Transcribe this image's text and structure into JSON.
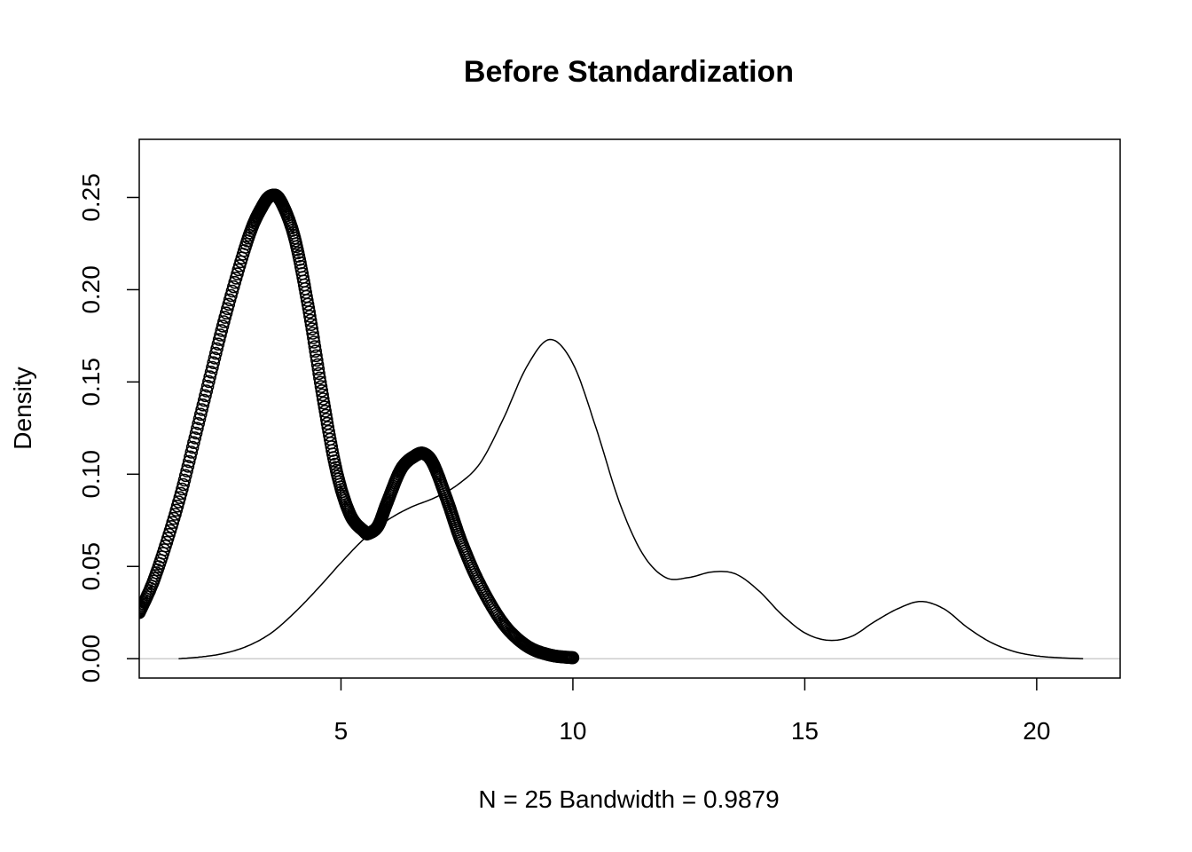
{
  "chart_data": {
    "type": "line",
    "title": "Before Standardization",
    "xlabel": "N = 25   Bandwidth = 0.9879",
    "ylabel": "Density",
    "xlim": [
      0.65,
      21.8
    ],
    "ylim": [
      -0.0105,
      0.2815
    ],
    "x_ticks": [
      5,
      10,
      15,
      20
    ],
    "x_tick_labels": [
      "5",
      "10",
      "15",
      "20"
    ],
    "y_ticks": [
      0.0,
      0.05,
      0.1,
      0.15,
      0.2,
      0.25
    ],
    "y_tick_labels": [
      "0.00",
      "0.05",
      "0.10",
      "0.15",
      "0.20",
      "0.25"
    ],
    "baseline": {
      "y": 0,
      "color": "#bebebe"
    },
    "series": [
      {
        "name": "density-line",
        "style": "line",
        "color": "#000000",
        "x": [
          1.5,
          2.0,
          2.5,
          3.0,
          3.5,
          4.0,
          4.5,
          5.0,
          5.5,
          6.0,
          6.5,
          7.0,
          7.5,
          8.0,
          8.5,
          9.0,
          9.5,
          10.0,
          10.5,
          11.0,
          11.5,
          12.0,
          12.5,
          13.0,
          13.5,
          14.0,
          14.5,
          15.0,
          15.5,
          16.0,
          16.5,
          17.0,
          17.5,
          18.0,
          18.5,
          19.0,
          19.5,
          20.0,
          20.5,
          21.0
        ],
        "y": [
          0.0,
          0.001,
          0.003,
          0.007,
          0.014,
          0.025,
          0.038,
          0.052,
          0.065,
          0.075,
          0.082,
          0.087,
          0.094,
          0.106,
          0.13,
          0.158,
          0.173,
          0.16,
          0.125,
          0.085,
          0.057,
          0.044,
          0.044,
          0.047,
          0.046,
          0.037,
          0.024,
          0.014,
          0.01,
          0.012,
          0.02,
          0.027,
          0.031,
          0.027,
          0.017,
          0.009,
          0.004,
          0.0015,
          0.0005,
          0.0
        ]
      },
      {
        "name": "density-points",
        "style": "points",
        "marker": "open-circle",
        "color": "#000000",
        "x": [
          0.65,
          1.0,
          1.5,
          2.0,
          2.5,
          3.0,
          3.3,
          3.5,
          3.7,
          4.0,
          4.3,
          4.6,
          4.9,
          5.2,
          5.5,
          5.6,
          5.8,
          6.0,
          6.3,
          6.6,
          6.8,
          7.0,
          7.3,
          7.6,
          8.0,
          8.5,
          9.0,
          9.5,
          10.0
        ],
        "y": [
          0.025,
          0.045,
          0.085,
          0.135,
          0.185,
          0.228,
          0.245,
          0.251,
          0.248,
          0.228,
          0.19,
          0.143,
          0.102,
          0.078,
          0.069,
          0.068,
          0.072,
          0.085,
          0.103,
          0.11,
          0.111,
          0.105,
          0.085,
          0.063,
          0.04,
          0.019,
          0.007,
          0.002,
          0.0005
        ]
      }
    ]
  }
}
